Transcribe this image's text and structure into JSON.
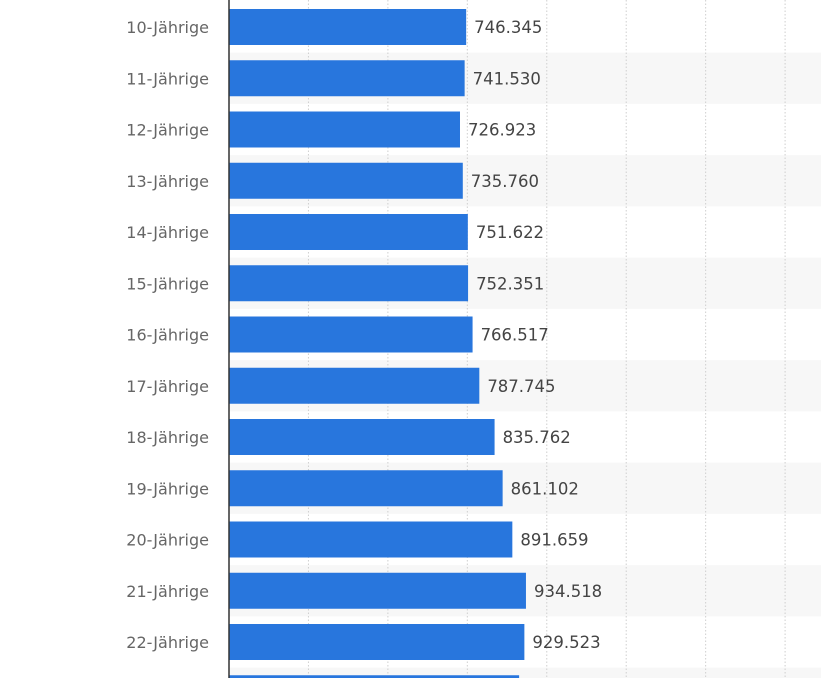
{
  "chart_data": {
    "type": "bar",
    "orientation": "horizontal",
    "title": "",
    "xlabel": "",
    "ylabel": "",
    "categories": [
      "10-Jährige",
      "11-Jährige",
      "12-Jährige",
      "13-Jährige",
      "14-Jährige",
      "15-Jährige",
      "16-Jährige",
      "17-Jährige",
      "18-Jährige",
      "19-Jährige",
      "20-Jährige",
      "21-Jährige",
      "22-Jährige"
    ],
    "values": [
      746345,
      741530,
      726923,
      735760,
      751622,
      752351,
      766517,
      787745,
      835762,
      861102,
      891659,
      934518,
      929523
    ],
    "value_labels": [
      "746.345",
      "741.530",
      "726.923",
      "735.760",
      "751.622",
      "752.351",
      "766.517",
      "787.745",
      "835.762",
      "861.102",
      "891.659",
      "934.518",
      "929.523"
    ],
    "partial_next_bar_value_estimate": 913000,
    "xlim": [
      0,
      1863000
    ],
    "grid_step": 250000,
    "grid": true,
    "legend": "none",
    "bar_color": "#2876dd",
    "stripe_color": "#f7f7f7"
  }
}
